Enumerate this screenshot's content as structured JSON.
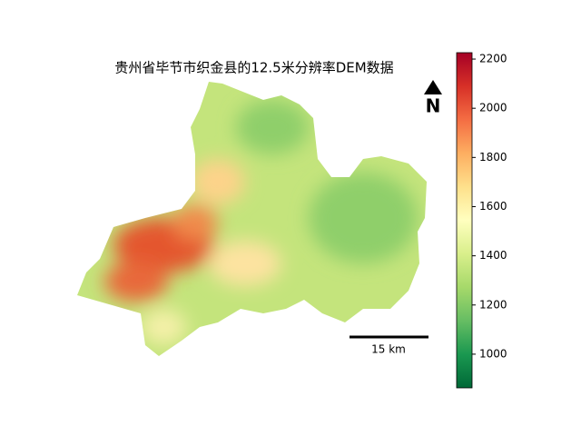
{
  "title": "贵州省毕节市织金县的12.5米分辨率DEM数据",
  "colorbar": {
    "lim": [
      863,
      2226
    ],
    "ticks": [
      1000,
      1200,
      1400,
      1600,
      1800,
      2000,
      2200
    ],
    "colormap": "RdYlGn_r"
  },
  "scale_bar": {
    "label": "15 km"
  },
  "north_arrow": {
    "label": "N"
  }
}
